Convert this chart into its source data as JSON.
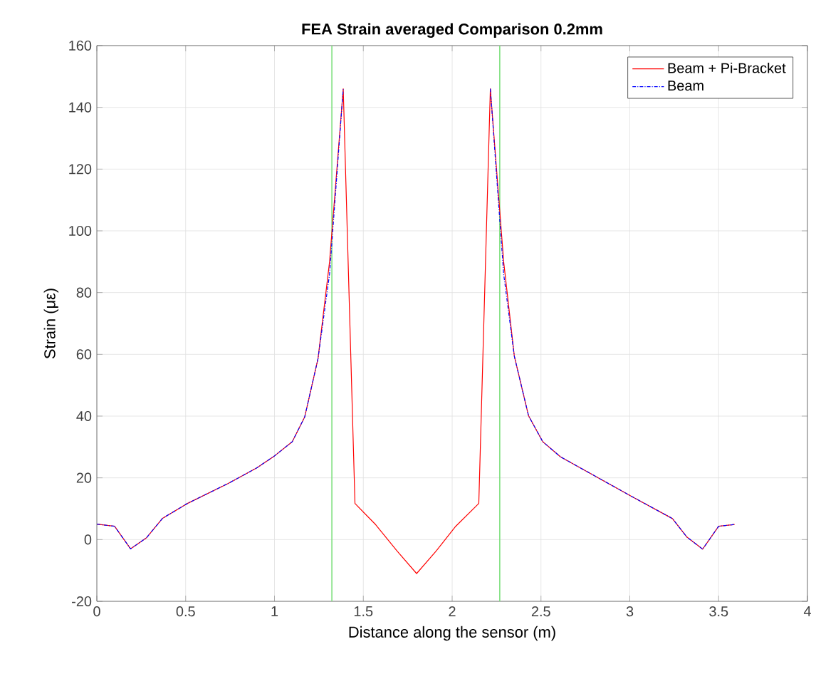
{
  "chart_data": {
    "type": "line",
    "title": "FEA Strain averaged Comparison 0.2mm",
    "xlabel": "Distance along the sensor (m)",
    "ylabel": "Strain (με)",
    "x": [
      0,
      0.1,
      0.19,
      0.28,
      0.37,
      0.51,
      0.74,
      0.9,
      1.0,
      1.1,
      1.17,
      1.245,
      1.31,
      1.387,
      1.453,
      1.57,
      1.69,
      1.8,
      1.91,
      2.02,
      2.15,
      2.215,
      2.29,
      2.35,
      2.43,
      2.51,
      2.61,
      3.01,
      3.24,
      3.32,
      3.41,
      3.5,
      3.59
    ],
    "series": [
      {
        "name": "Beam + Pi-Bracket",
        "color": "#ff0000",
        "line_style": "solid",
        "values": [
          5,
          4.3,
          -3,
          0.6,
          6.9,
          11.7,
          18.2,
          23.2,
          27.1,
          31.7,
          39.7,
          58.6,
          90,
          146,
          11.7,
          4.8,
          -3.7,
          -11,
          -3.7,
          4.3,
          11.7,
          146,
          90,
          59.4,
          40.1,
          31.7,
          26.8,
          14,
          6.8,
          0.9,
          -3.1,
          4.3,
          4.9
        ]
      },
      {
        "name": "Beam",
        "color": "#0000ff",
        "line_style": "dashdot",
        "values": [
          5,
          4.3,
          -3,
          0.6,
          6.9,
          11.7,
          18.2,
          23.2,
          27.1,
          31.7,
          39.7,
          58.6,
          86,
          146,
          null,
          null,
          null,
          null,
          null,
          null,
          null,
          146,
          86,
          59.4,
          40.1,
          31.7,
          26.8,
          14,
          6.8,
          0.9,
          -3.1,
          4.3,
          4.9
        ]
      }
    ],
    "ref_lines": [
      {
        "axis": "x",
        "value": 1.323,
        "color": "#80e080"
      },
      {
        "axis": "x",
        "value": 2.268,
        "color": "#80e080"
      }
    ],
    "xlim": [
      0,
      4
    ],
    "ylim": [
      -20,
      160
    ],
    "xticks": [
      0,
      0.5,
      1,
      1.5,
      2,
      2.5,
      3,
      3.5,
      4
    ],
    "yticks": [
      -20,
      0,
      20,
      40,
      60,
      80,
      100,
      120,
      140,
      160
    ],
    "grid": true,
    "legend": "top right"
  }
}
